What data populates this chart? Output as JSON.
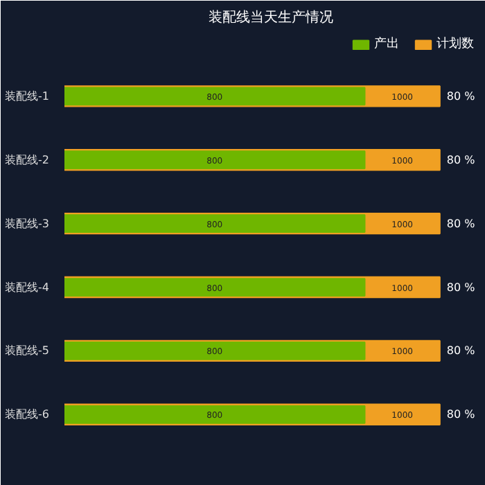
{
  "chart_data": {
    "type": "bar",
    "orientation": "horizontal",
    "title": "装配线当天生产情况",
    "categories": [
      "装配线-1",
      "装配线-2",
      "装配线-3",
      "装配线-4",
      "装配线-5",
      "装配线-6"
    ],
    "series": [
      {
        "name": "计划数",
        "color": "#f0a023",
        "values": [
          1000,
          1000,
          1000,
          1000,
          1000,
          1000
        ]
      },
      {
        "name": "产出",
        "color": "#6fb600",
        "values": [
          800,
          800,
          800,
          800,
          800,
          800
        ]
      }
    ],
    "data_labels": true,
    "legend": "top right",
    "annotations": [
      "80 %",
      "80 %",
      "80 %",
      "80 %",
      "80 %",
      "80 %"
    ]
  }
}
